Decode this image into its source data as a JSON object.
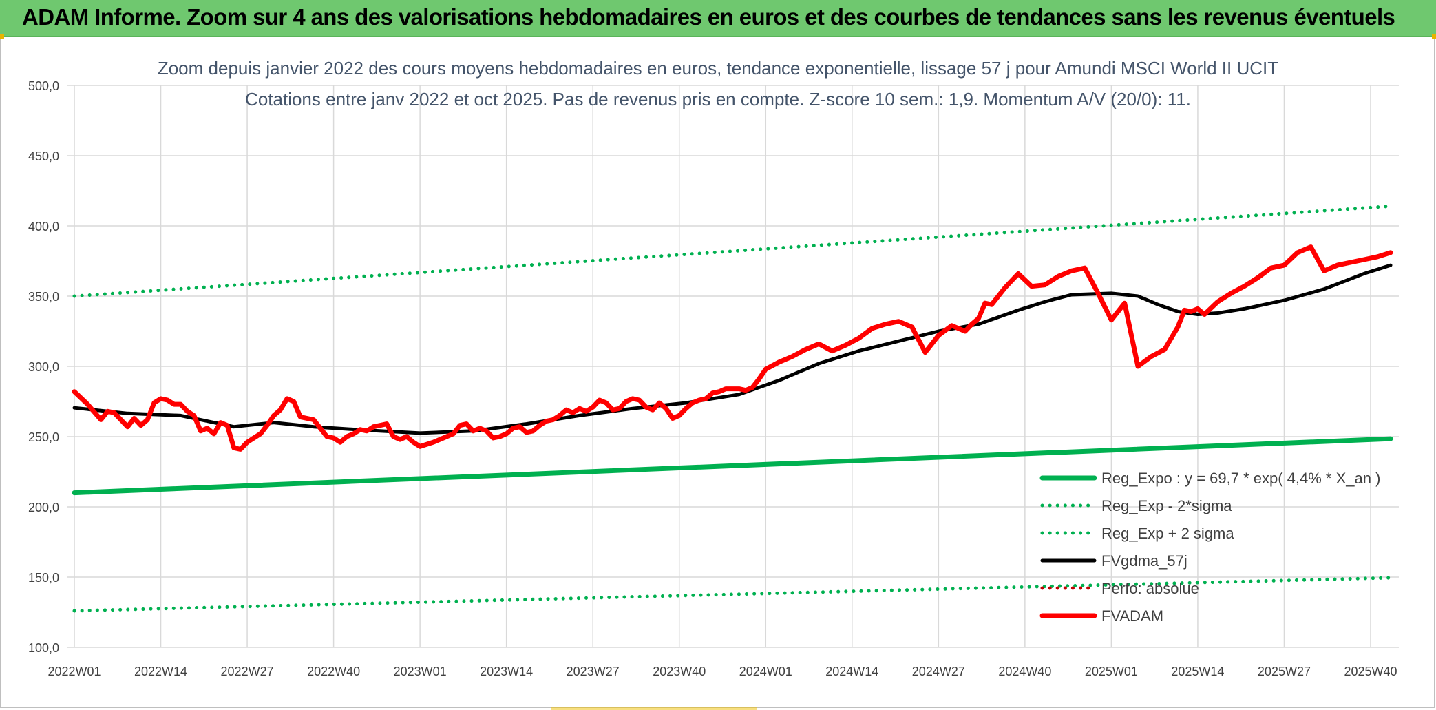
{
  "banner": {
    "title": "ADAM Informe. Zoom sur 4 ans des valorisations hebdomadaires en euros et des courbes de tendances sans les revenus éventuels"
  },
  "chart_data": {
    "type": "line",
    "title": "Zoom depuis janvier 2022 des cours moyens hebdomadaires en euros, tendance exponentielle, lissage 57 j pour Amundi MSCI World II UCIT",
    "subtitle": "Cotations entre janv 2022 et oct 2025. Pas de revenus pris en compte. Z-score 10 sem.: 1,9. Momentum A/V (20/0): 11.",
    "xlabel": "",
    "ylabel": "",
    "ylim": [
      100,
      500
    ],
    "yticks": [
      "100,0",
      "150,0",
      "200,0",
      "250,0",
      "300,0",
      "350,0",
      "400,0",
      "450,0",
      "500,0"
    ],
    "yticks_values": [
      100,
      150,
      200,
      250,
      300,
      350,
      400,
      450,
      500
    ],
    "xlim": [
      0,
      198
    ],
    "xticks": [
      "2022W01",
      "2022W14",
      "2022W27",
      "2022W40",
      "2023W01",
      "2023W14",
      "2023W27",
      "2023W40",
      "2024W01",
      "2024W14",
      "2024W27",
      "2024W40",
      "2025W01",
      "2025W14",
      "2025W27",
      "2025W40"
    ],
    "xticks_index": [
      0,
      13,
      26,
      39,
      52,
      65,
      78,
      91,
      104,
      117,
      130,
      143,
      156,
      169,
      182,
      195
    ],
    "grid": true,
    "legend_position": "bottom-right",
    "colors": {
      "green": "#00b050",
      "black": "#000000",
      "red": "#ff0000",
      "darkred": "#c00000"
    },
    "series": [
      {
        "name": "Reg_Expo : y = 69,7 * exp( 4,4% *  X_an )",
        "style": "solid",
        "color": "#00b050",
        "x": [
          0,
          198
        ],
        "values": [
          210,
          248.5
        ]
      },
      {
        "name": "Reg_Exp - 2*sigma",
        "style": "dotted",
        "color": "#00b050",
        "x": [
          0,
          198
        ],
        "values": [
          126,
          149.5
        ]
      },
      {
        "name": "Reg_Exp + 2 sigma",
        "style": "dotted",
        "color": "#00b050",
        "x": [
          0,
          198
        ],
        "values": [
          350,
          414
        ]
      },
      {
        "name": "FVgdma_57j",
        "style": "solid",
        "color": "#000000",
        "x": [
          0,
          8,
          16,
          24,
          30,
          36,
          44,
          52,
          60,
          68,
          76,
          84,
          92,
          100,
          106,
          112,
          118,
          124,
          130,
          136,
          142,
          146,
          150,
          156,
          160,
          163,
          166,
          169,
          172,
          176,
          182,
          188,
          194,
          198
        ],
        "values": [
          270.5,
          266.5,
          265,
          257,
          260,
          257,
          254.5,
          252.5,
          254,
          259,
          265,
          270,
          274,
          280,
          290,
          302,
          311,
          318,
          325,
          330,
          340,
          346,
          351,
          352,
          350,
          344,
          339,
          337,
          338,
          341,
          347,
          355,
          366,
          372
        ]
      },
      {
        "name": "Perfo: absolue",
        "style": "dotted",
        "color": "#c00000",
        "x": [],
        "values": []
      },
      {
        "name": "FVADAM",
        "style": "solid",
        "color": "#ff0000",
        "x": [
          0,
          2,
          4,
          5,
          6,
          8,
          9,
          10,
          11,
          12,
          13,
          14,
          15,
          16,
          17,
          18,
          19,
          20,
          21,
          22,
          23,
          24,
          25,
          26,
          27,
          28,
          29,
          30,
          31,
          32,
          33,
          34,
          35,
          36,
          37,
          38,
          39,
          40,
          41,
          42,
          43,
          44,
          45,
          46,
          47,
          48,
          49,
          50,
          51,
          52,
          54,
          56,
          57,
          58,
          59,
          60,
          61,
          62,
          63,
          64,
          65,
          66,
          67,
          68,
          69,
          70,
          71,
          72,
          73,
          74,
          75,
          76,
          77,
          78,
          79,
          80,
          81,
          82,
          83,
          84,
          85,
          86,
          87,
          88,
          89,
          90,
          91,
          92,
          93,
          94,
          95,
          96,
          97,
          98,
          99,
          100,
          101,
          102,
          103,
          104,
          106,
          108,
          110,
          112,
          114,
          116,
          118,
          120,
          122,
          124,
          126,
          128,
          130,
          132,
          134,
          135,
          136,
          137,
          138,
          140,
          142,
          144,
          146,
          148,
          150,
          152,
          154,
          156,
          158,
          160,
          162,
          164,
          166,
          167,
          168,
          169,
          170,
          172,
          174,
          176,
          178,
          180,
          182,
          184,
          186,
          188,
          190,
          192,
          194,
          196,
          198
        ],
        "values": [
          282,
          273,
          262,
          268,
          267,
          257,
          263,
          258,
          262,
          274,
          277,
          276,
          273,
          273,
          268,
          265,
          254,
          256,
          252,
          260,
          258,
          242,
          241,
          246,
          249,
          252,
          258,
          265,
          269,
          277,
          275,
          264,
          263,
          262,
          256,
          250,
          249,
          246,
          250,
          252,
          255,
          254,
          257,
          258,
          259,
          250,
          248,
          250,
          246,
          243,
          246,
          250,
          252,
          258,
          259,
          254,
          256,
          254,
          249,
          250,
          252,
          256,
          257,
          253,
          254,
          258,
          261,
          262,
          265,
          269,
          267,
          270,
          268,
          271,
          276,
          274,
          269,
          270,
          275,
          277,
          276,
          271,
          269,
          274,
          270,
          263,
          265,
          270,
          274,
          276,
          277,
          281,
          282,
          284,
          284,
          284,
          283,
          285,
          291,
          298,
          303,
          307,
          312,
          316,
          311,
          315,
          320,
          327,
          330,
          332,
          328,
          310,
          322,
          329,
          325,
          330,
          334,
          345,
          344,
          356,
          366,
          357,
          358,
          364,
          368,
          370,
          352,
          333,
          345,
          300,
          307,
          312,
          328,
          340,
          339,
          341,
          337,
          346,
          352,
          357,
          363,
          370,
          372,
          381,
          385,
          368,
          372,
          374,
          376,
          378,
          381
        ]
      }
    ]
  }
}
